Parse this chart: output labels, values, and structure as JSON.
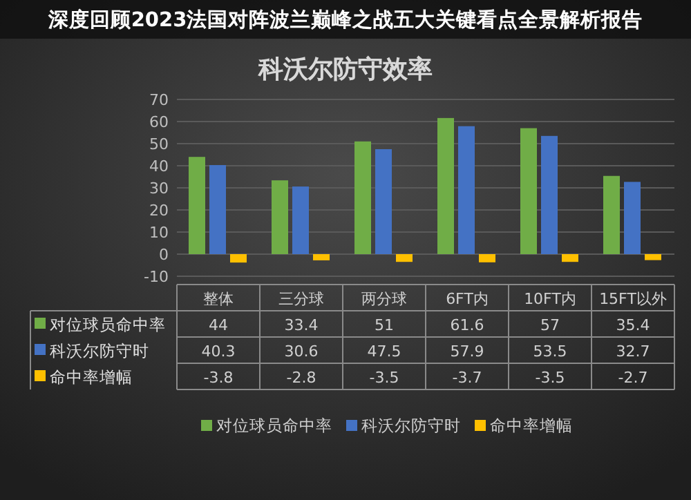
{
  "chart_data": {
    "type": "bar",
    "title": "科沃尔防守效率",
    "annotations": [
      "深度回顾2023法国对阵波兰巅峰之战五大关键看点全景解析报告"
    ],
    "categories": [
      "整体",
      "三分球",
      "两分球",
      "6FT内",
      "10FT内",
      "15FT以外"
    ],
    "series": [
      {
        "name": "对位球员命中率",
        "color": "#70ad47",
        "values": [
          44,
          33.4,
          51,
          61.6,
          57,
          35.4
        ]
      },
      {
        "name": "科沃尔防守时",
        "color": "#4472c4",
        "values": [
          40.3,
          30.6,
          47.5,
          57.9,
          53.5,
          32.7
        ]
      },
      {
        "name": "命中率增幅",
        "color": "#ffc000",
        "values": [
          -3.8,
          -2.8,
          -3.5,
          -3.7,
          -3.5,
          -2.7
        ]
      }
    ],
    "ylim": [
      -10,
      70
    ],
    "yticks": [
      -10,
      0,
      10,
      20,
      30,
      40,
      50,
      60,
      70
    ],
    "grid": "y",
    "legend": "bottom",
    "data_labels": true
  }
}
